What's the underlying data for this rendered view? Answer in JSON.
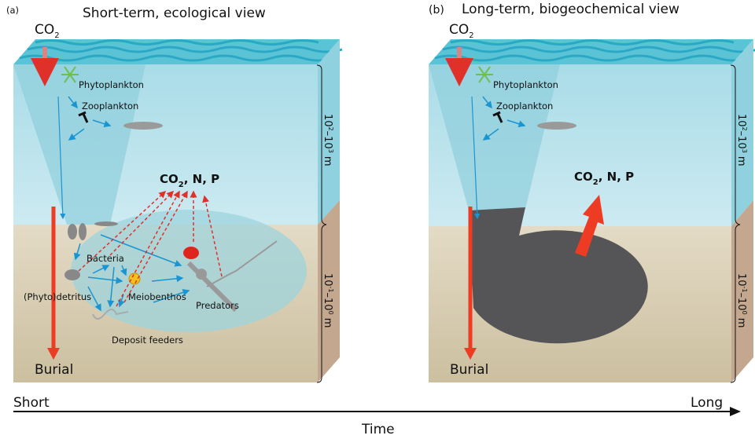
{
  "panel_a": {
    "letter": "(a)",
    "title": "Short-term, ecological view",
    "co2_top": {
      "base": "CO",
      "sub": "2"
    },
    "labels": {
      "phytoplankton": "Phytoplankton",
      "zooplankton": "Zooplankton",
      "bacteria": "Bacteria",
      "detritus": "(Phyto)detritus",
      "meiobenthos": "Meiobenthos",
      "predators": "Predators",
      "deposit_feeders": "Deposit feeders",
      "burial": "Burial"
    },
    "release": {
      "base": "CO",
      "sub": "2",
      "rest": ", N, P"
    },
    "scale_water": {
      "base": "10",
      "sup1": "2",
      "mid": "–10",
      "sup2": "3",
      "unit": " m"
    },
    "scale_sediment": {
      "base": "10",
      "sup1": "-1",
      "mid": "–10",
      "sup2": "0",
      "unit": " m"
    }
  },
  "panel_b": {
    "letter": "(b)",
    "title": "Long-term, biogeochemical view",
    "co2_top": {
      "base": "CO",
      "sub": "2"
    },
    "labels": {
      "phytoplankton": "Phytoplankton",
      "zooplankton": "Zooplankton",
      "burial": "Burial"
    },
    "release": {
      "base": "CO",
      "sub": "2",
      "rest": ", N, P"
    },
    "scale_water": {
      "base": "10",
      "sup1": "2",
      "mid": "–10",
      "sup2": "3",
      "unit": " m"
    },
    "scale_sediment": {
      "base": "10",
      "sup1": "-1",
      "mid": "–10",
      "sup2": "0",
      "unit": " m"
    }
  },
  "time_axis": {
    "start": "Short",
    "end": "Long",
    "label": "Time"
  },
  "colors": {
    "water": "#bfe5ee",
    "sediment": "#ddd1b6",
    "flux_arrow": "#ee3b24",
    "food_web_arrow": "#1b95d2",
    "box": "#505050"
  }
}
